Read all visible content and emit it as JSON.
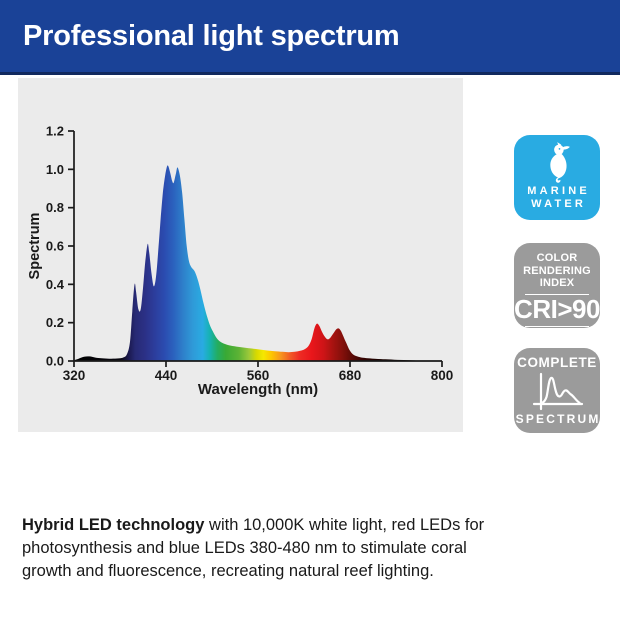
{
  "header": {
    "title": "Professional light spectrum"
  },
  "colors": {
    "header_bg": "#1a4297",
    "header_border": "#11295e",
    "panel_bg": "#ebebeb",
    "marine_badge_bg": "#29abe2",
    "gray_badge_bg": "#9b9b9b",
    "text": "#1a1a1a",
    "badge_text": "#ffffff"
  },
  "chart_data": {
    "type": "area",
    "title": "",
    "xlabel": "Wavelength (nm)",
    "ylabel": "Spectrum",
    "xlim": [
      320,
      800
    ],
    "ylim": [
      0,
      1.2
    ],
    "x_ticks": [
      320,
      440,
      560,
      680,
      800
    ],
    "y_ticks": [
      "0.0",
      "0.2",
      "0.4",
      "0.6",
      "0.8",
      "1.0",
      "1.2"
    ],
    "grid": false,
    "legend": false,
    "points": [
      [
        320,
        0.004
      ],
      [
        326,
        0.012
      ],
      [
        333,
        0.022
      ],
      [
        340,
        0.024
      ],
      [
        348,
        0.018
      ],
      [
        356,
        0.014
      ],
      [
        366,
        0.012
      ],
      [
        376,
        0.013
      ],
      [
        384,
        0.018
      ],
      [
        389,
        0.035
      ],
      [
        393,
        0.1
      ],
      [
        396,
        0.26
      ],
      [
        399,
        0.4
      ],
      [
        401,
        0.36
      ],
      [
        404,
        0.27
      ],
      [
        407,
        0.27
      ],
      [
        410,
        0.38
      ],
      [
        413,
        0.52
      ],
      [
        416,
        0.61
      ],
      [
        418,
        0.57
      ],
      [
        421,
        0.46
      ],
      [
        424,
        0.39
      ],
      [
        427,
        0.44
      ],
      [
        430,
        0.58
      ],
      [
        433,
        0.74
      ],
      [
        436,
        0.88
      ],
      [
        439,
        0.97
      ],
      [
        442,
        1.02
      ],
      [
        445,
        0.99
      ],
      [
        448,
        0.94
      ],
      [
        450,
        0.93
      ],
      [
        453,
        0.98
      ],
      [
        455,
        1.01
      ],
      [
        458,
        0.97
      ],
      [
        461,
        0.88
      ],
      [
        464,
        0.74
      ],
      [
        467,
        0.6
      ],
      [
        470,
        0.52
      ],
      [
        473,
        0.49
      ],
      [
        477,
        0.47
      ],
      [
        481,
        0.43
      ],
      [
        485,
        0.37
      ],
      [
        489,
        0.3
      ],
      [
        493,
        0.24
      ],
      [
        497,
        0.19
      ],
      [
        501,
        0.155
      ],
      [
        506,
        0.12
      ],
      [
        511,
        0.1
      ],
      [
        516,
        0.09
      ],
      [
        522,
        0.082
      ],
      [
        532,
        0.075
      ],
      [
        542,
        0.07
      ],
      [
        552,
        0.065
      ],
      [
        562,
        0.06
      ],
      [
        572,
        0.055
      ],
      [
        582,
        0.051
      ],
      [
        592,
        0.048
      ],
      [
        600,
        0.046
      ],
      [
        608,
        0.048
      ],
      [
        615,
        0.053
      ],
      [
        621,
        0.062
      ],
      [
        626,
        0.08
      ],
      [
        630,
        0.115
      ],
      [
        634,
        0.175
      ],
      [
        637,
        0.195
      ],
      [
        640,
        0.183
      ],
      [
        644,
        0.148
      ],
      [
        648,
        0.122
      ],
      [
        651,
        0.113
      ],
      [
        654,
        0.12
      ],
      [
        658,
        0.142
      ],
      [
        662,
        0.165
      ],
      [
        665,
        0.17
      ],
      [
        668,
        0.158
      ],
      [
        671,
        0.132
      ],
      [
        675,
        0.095
      ],
      [
        679,
        0.06
      ],
      [
        683,
        0.038
      ],
      [
        688,
        0.026
      ],
      [
        694,
        0.019
      ],
      [
        701,
        0.015
      ],
      [
        712,
        0.012
      ],
      [
        726,
        0.009
      ],
      [
        742,
        0.006
      ],
      [
        758,
        0.004
      ],
      [
        774,
        0.002
      ],
      [
        790,
        0.001
      ],
      [
        800,
        0.0005
      ]
    ],
    "gradient_stops": [
      [
        320,
        "#000000"
      ],
      [
        380,
        "#08060f"
      ],
      [
        392,
        "#1b1a52"
      ],
      [
        400,
        "#272a74"
      ],
      [
        412,
        "#2b3085"
      ],
      [
        425,
        "#2c3d9c"
      ],
      [
        438,
        "#2b4cb0"
      ],
      [
        450,
        "#2b62be"
      ],
      [
        462,
        "#2e7fca"
      ],
      [
        475,
        "#2f9ad8"
      ],
      [
        488,
        "#29abe2"
      ],
      [
        497,
        "#16b2b2"
      ],
      [
        507,
        "#23ad62"
      ],
      [
        518,
        "#39a935"
      ],
      [
        535,
        "#5db335"
      ],
      [
        548,
        "#9bc83a"
      ],
      [
        558,
        "#d7d900"
      ],
      [
        567,
        "#f5e800"
      ],
      [
        578,
        "#fdc400"
      ],
      [
        590,
        "#f7941d"
      ],
      [
        602,
        "#f15a24"
      ],
      [
        614,
        "#ee2c24"
      ],
      [
        630,
        "#e9161b"
      ],
      [
        645,
        "#cf1417"
      ],
      [
        658,
        "#a61310"
      ],
      [
        670,
        "#84100b"
      ],
      [
        682,
        "#5e0a06"
      ],
      [
        695,
        "#3a0503"
      ],
      [
        715,
        "#1c0200"
      ],
      [
        750,
        "#0a0100"
      ],
      [
        800,
        "#000000"
      ]
    ]
  },
  "badges": {
    "marine": {
      "icon": "seahorse-icon",
      "line1": "MARINE",
      "line2": "WATER"
    },
    "cri": {
      "line1": "COLOR",
      "line2": "RENDERING",
      "line3": "INDEX",
      "value": "CRI>90"
    },
    "complete": {
      "top": "COMPLETE",
      "icon": "mini-spectrum-icon",
      "bottom": "SPECTRUM"
    }
  },
  "description": {
    "bold": "Hybrid LED technology",
    "line1_rest": " with 10,000K white light, red LEDs for",
    "line2": "photosynthesis and blue LEDs 380-480 nm to stimulate coral",
    "line3": "growth and fluorescence, recreating natural reef lighting."
  }
}
